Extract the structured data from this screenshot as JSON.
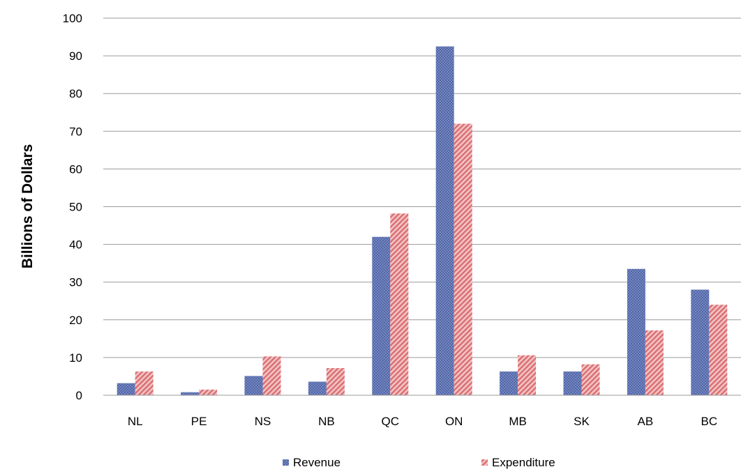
{
  "chart_data": {
    "type": "bar",
    "title": "",
    "xlabel": "",
    "ylabel": "Billions of Dollars",
    "ylim": [
      0,
      100
    ],
    "yticks": [
      0,
      10,
      20,
      30,
      40,
      50,
      60,
      70,
      80,
      90,
      100
    ],
    "grid": true,
    "legend_position": "bottom",
    "categories": [
      "NL",
      "PE",
      "NS",
      "NB",
      "QC",
      "ON",
      "MB",
      "SK",
      "AB",
      "BC"
    ],
    "series": [
      {
        "name": "Revenue",
        "color": "#6f83bd",
        "values": [
          3.2,
          0.8,
          5.1,
          3.6,
          42.0,
          92.5,
          6.3,
          6.3,
          33.5,
          28.0
        ]
      },
      {
        "name": "Expenditure",
        "color": "#e08c8f",
        "values": [
          6.3,
          1.5,
          10.3,
          7.2,
          48.2,
          72.0,
          10.6,
          8.2,
          17.2,
          24.0
        ]
      }
    ]
  }
}
